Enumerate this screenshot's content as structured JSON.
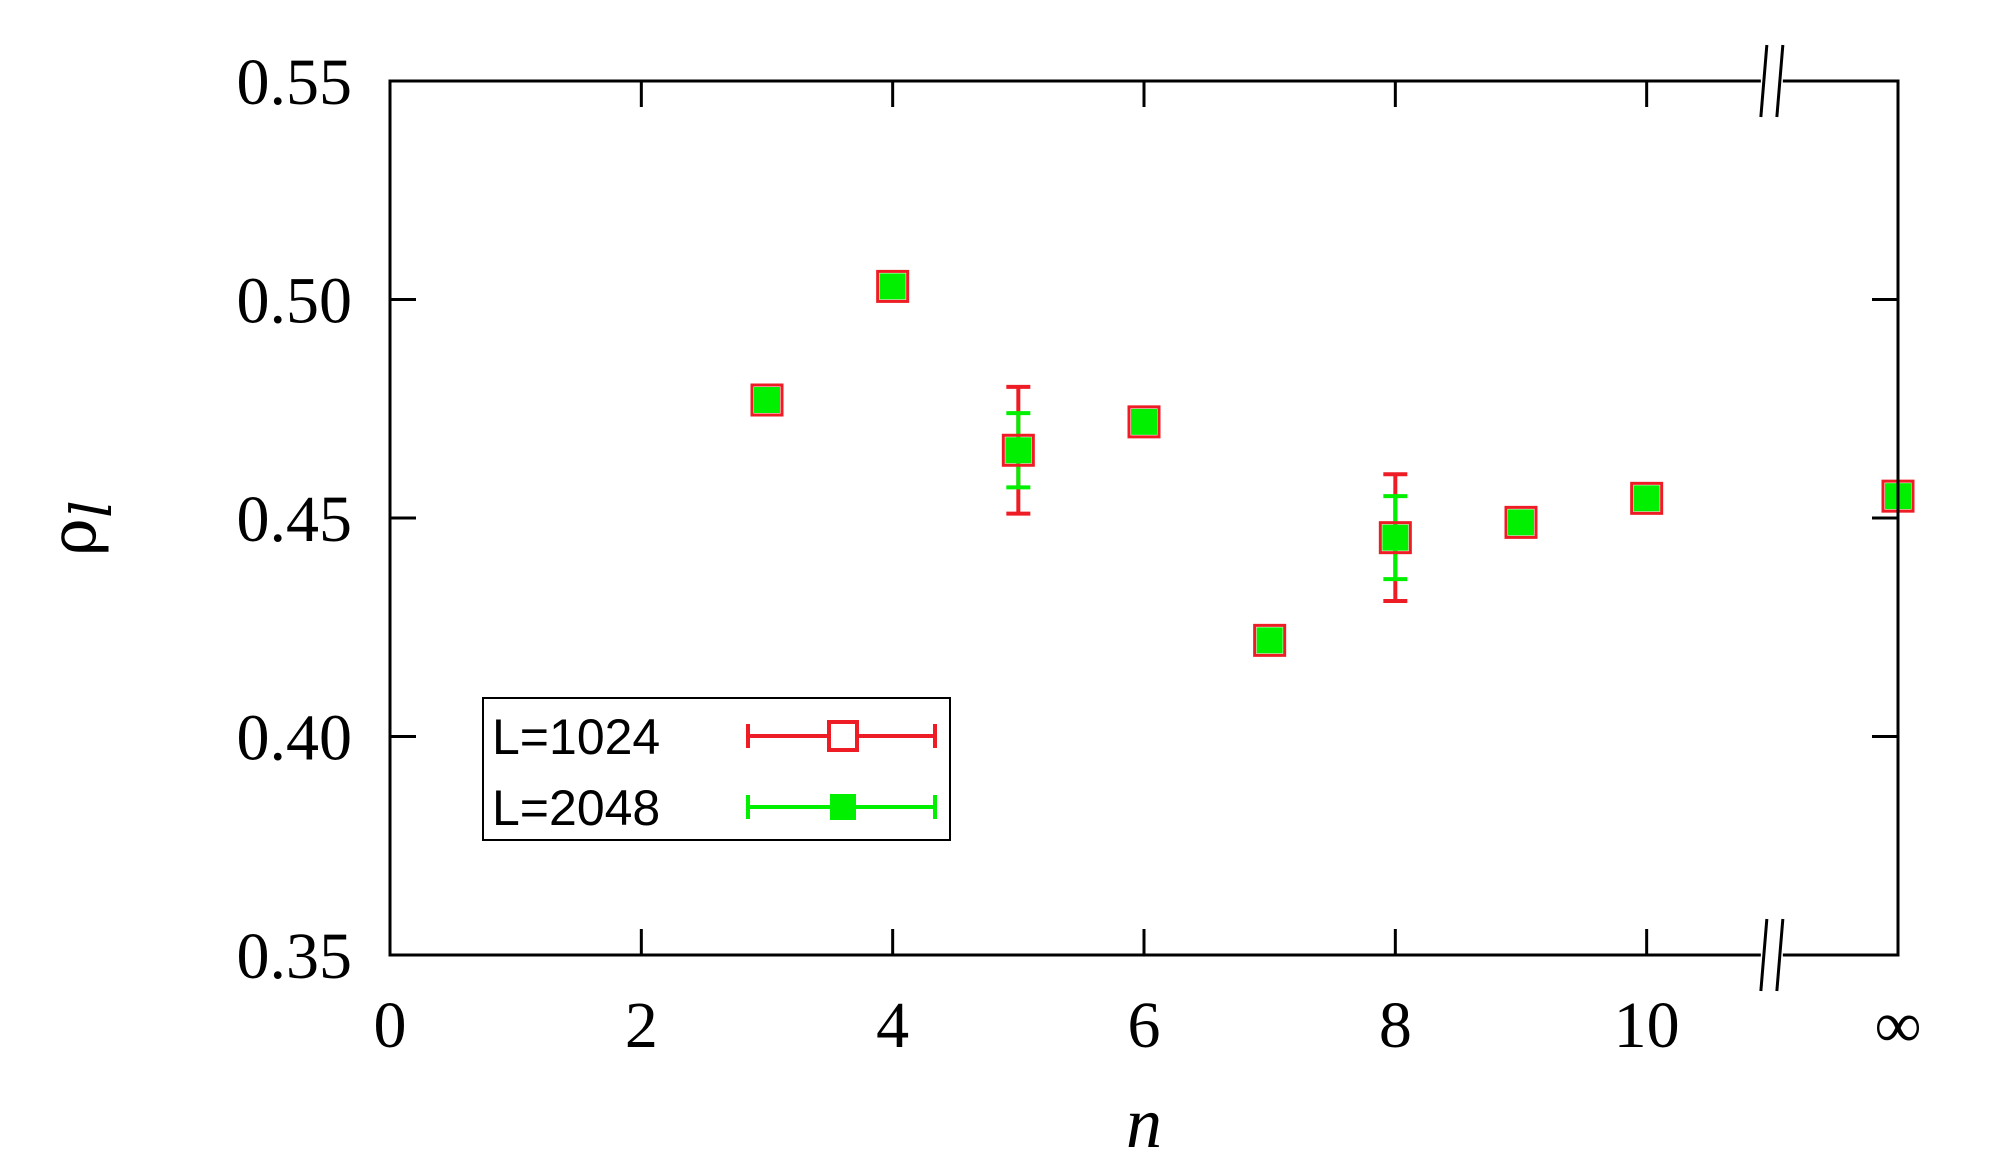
{
  "chart_data": {
    "type": "scatter",
    "xlabel": "n",
    "ylabel": {
      "symbol": "ρ",
      "subscript": "l"
    },
    "xlim": [
      0,
      12
    ],
    "ylim": [
      0.35,
      0.55
    ],
    "x_axis_break": "between 10 and ∞",
    "xticks": [
      {
        "value": 0,
        "label": "0"
      },
      {
        "value": 2,
        "label": "2"
      },
      {
        "value": 4,
        "label": "4"
      },
      {
        "value": 6,
        "label": "6"
      },
      {
        "value": 8,
        "label": "8"
      },
      {
        "value": 10,
        "label": "10"
      },
      {
        "value": 12,
        "label": "∞"
      }
    ],
    "yticks": [
      {
        "value": 0.35,
        "label": "0.35"
      },
      {
        "value": 0.4,
        "label": "0.40"
      },
      {
        "value": 0.45,
        "label": "0.45"
      },
      {
        "value": 0.5,
        "label": "0.50"
      },
      {
        "value": 0.55,
        "label": "0.55"
      }
    ],
    "grid": false,
    "legend_position": "bottom-left",
    "series": [
      {
        "name": "L=1024",
        "color": "#ee1c25",
        "marker": "open-square",
        "points": [
          {
            "x": 3,
            "y": 0.477,
            "err": 0
          },
          {
            "x": 4,
            "y": 0.503,
            "err": 0
          },
          {
            "x": 5,
            "y": 0.4655,
            "err": 0.0145
          },
          {
            "x": 6,
            "y": 0.472,
            "err": 0
          },
          {
            "x": 7,
            "y": 0.422,
            "err": 0
          },
          {
            "x": 8,
            "y": 0.4455,
            "err": 0.0145
          },
          {
            "x": 9,
            "y": 0.449,
            "err": 0
          },
          {
            "x": 10,
            "y": 0.4545,
            "err": 0
          },
          {
            "x": 12,
            "y": 0.455,
            "err": 0
          }
        ]
      },
      {
        "name": "L=2048",
        "color": "#00f000",
        "marker": "filled-square",
        "points": [
          {
            "x": 3,
            "y": 0.477,
            "err": 0
          },
          {
            "x": 4,
            "y": 0.503,
            "err": 0
          },
          {
            "x": 5,
            "y": 0.4655,
            "err": 0.0085
          },
          {
            "x": 6,
            "y": 0.472,
            "err": 0
          },
          {
            "x": 7,
            "y": 0.422,
            "err": 0
          },
          {
            "x": 8,
            "y": 0.4455,
            "err": 0.0095
          },
          {
            "x": 9,
            "y": 0.449,
            "err": 0
          },
          {
            "x": 10,
            "y": 0.4545,
            "err": 0
          },
          {
            "x": 12,
            "y": 0.455,
            "err": 0
          }
        ]
      }
    ]
  }
}
